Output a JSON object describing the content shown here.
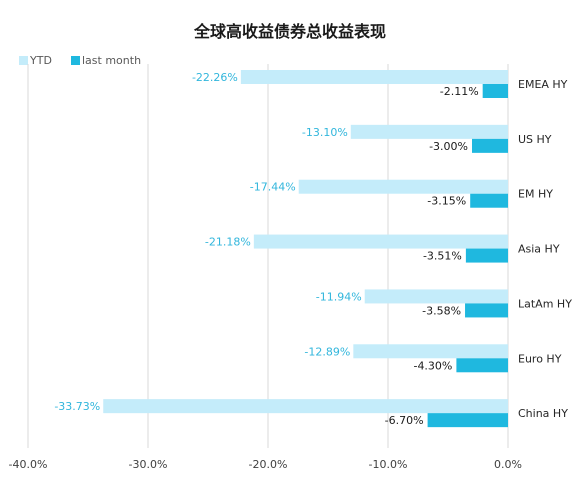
{
  "chart_data": {
    "type": "bar",
    "orientation": "horizontal",
    "title": "全球高收益债券总收益表现",
    "categories": [
      "EMEA HY",
      "US HY",
      "EM HY",
      "Asia HY",
      "LatAm HY",
      "Euro HY",
      "China HY"
    ],
    "series": [
      {
        "name": "YTD",
        "values": [
          -22.26,
          -13.1,
          -17.44,
          -21.18,
          -11.94,
          -12.89,
          -33.73
        ],
        "labels": [
          "-22.26%",
          "-13.10%",
          "-17.44%",
          "-21.18%",
          "-11.94%",
          "-12.89%",
          "-33.73%"
        ]
      },
      {
        "name": "last month",
        "values": [
          -2.11,
          -3.0,
          -3.15,
          -3.51,
          -3.58,
          -4.3,
          -6.7
        ],
        "labels": [
          "-2.11%",
          "-3.00%",
          "-3.15%",
          "-3.51%",
          "-3.58%",
          "-4.30%",
          "-6.70%"
        ]
      }
    ],
    "xlim": [
      -40,
      0
    ],
    "xticks": [
      -40,
      -30,
      -20,
      -10,
      0
    ],
    "xtick_labels": [
      "-40.0%",
      "-30.0%",
      "-20.0%",
      "-10.0%",
      "0.0%"
    ],
    "grid": true,
    "legend_position": "top-left",
    "colors": {
      "YTD": "#c4ecfa",
      "last month": "#1fb8df",
      "ytd_label": "#31b6dc",
      "lm_label": "#1a1a1a"
    }
  }
}
